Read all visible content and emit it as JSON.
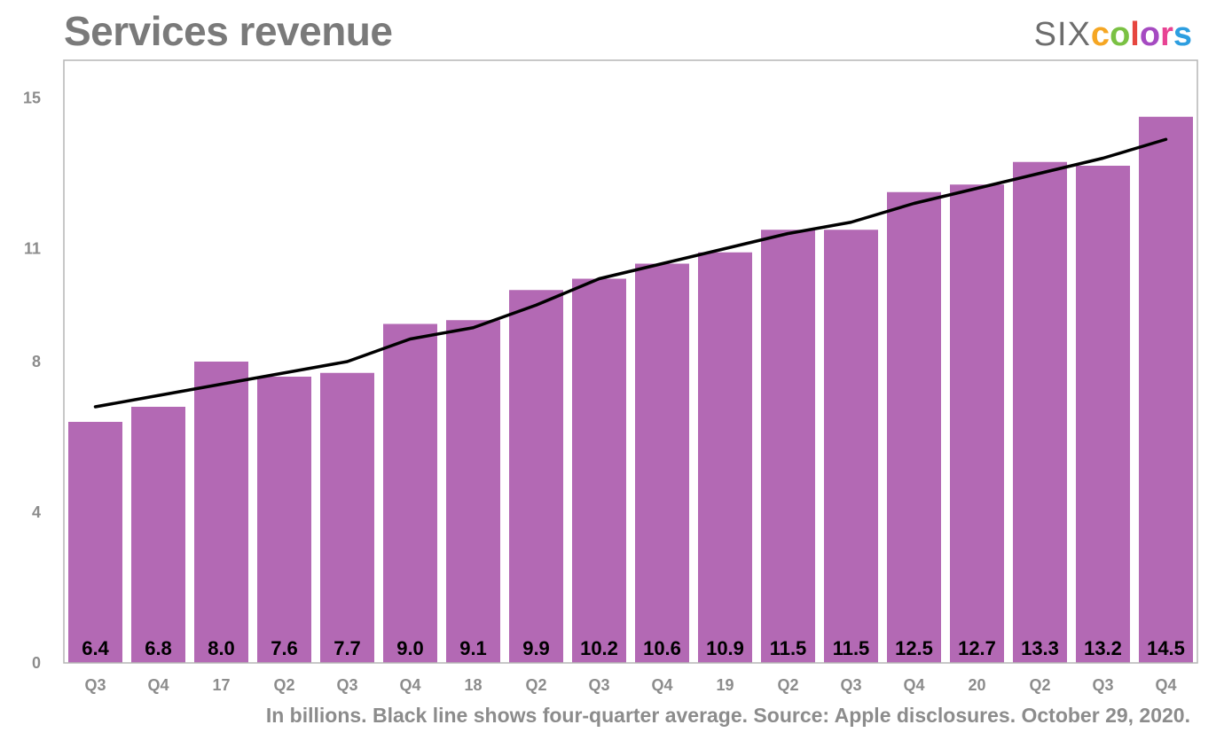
{
  "header": {
    "title": "Services revenue",
    "logo_prefix": "SIX",
    "logo_suffix_letters": [
      {
        "char": "c",
        "color": "#f5a623"
      },
      {
        "char": "o",
        "color": "#7ac143"
      },
      {
        "char": "l",
        "color": "#e6463f"
      },
      {
        "char": "o",
        "color": "#a54ac1"
      },
      {
        "char": "r",
        "color": "#e84393"
      },
      {
        "char": "s",
        "color": "#2d9ee0"
      }
    ]
  },
  "footnote": "In billions. Black line shows four-quarter average. Source: Apple disclosures. October 29, 2020.",
  "colors": {
    "bar": "#b369b4",
    "line": "#000000",
    "frame": "#b5b5b5"
  },
  "chart_data": {
    "type": "bar",
    "title": "Services revenue",
    "xlabel": "",
    "ylabel": "",
    "ylim": [
      0,
      16
    ],
    "yticks": [
      0,
      4,
      8,
      11,
      15
    ],
    "grid": false,
    "categories": [
      "Q3",
      "Q4",
      "17",
      "Q2",
      "Q3",
      "Q4",
      "18",
      "Q2",
      "Q3",
      "Q4",
      "19",
      "Q2",
      "Q3",
      "Q4",
      "20",
      "Q2",
      "Q3",
      "Q4"
    ],
    "series": [
      {
        "name": "Services revenue",
        "type": "bar",
        "values": [
          6.4,
          6.8,
          8.0,
          7.6,
          7.7,
          9.0,
          9.1,
          9.9,
          10.2,
          10.6,
          10.9,
          11.5,
          11.5,
          12.5,
          12.7,
          13.3,
          13.2,
          14.5
        ],
        "labels": [
          "6.4",
          "6.8",
          "8.0",
          "7.6",
          "7.7",
          "9.0",
          "9.1",
          "9.9",
          "10.2",
          "10.6",
          "10.9",
          "11.5",
          "11.5",
          "12.5",
          "12.7",
          "13.3",
          "13.2",
          "14.5"
        ]
      },
      {
        "name": "Four-quarter average",
        "type": "line",
        "values": [
          6.8,
          7.1,
          7.4,
          7.7,
          8.0,
          8.6,
          8.9,
          9.5,
          10.2,
          10.6,
          11.0,
          11.4,
          11.7,
          12.2,
          12.6,
          13.0,
          13.4,
          13.9
        ]
      }
    ]
  }
}
